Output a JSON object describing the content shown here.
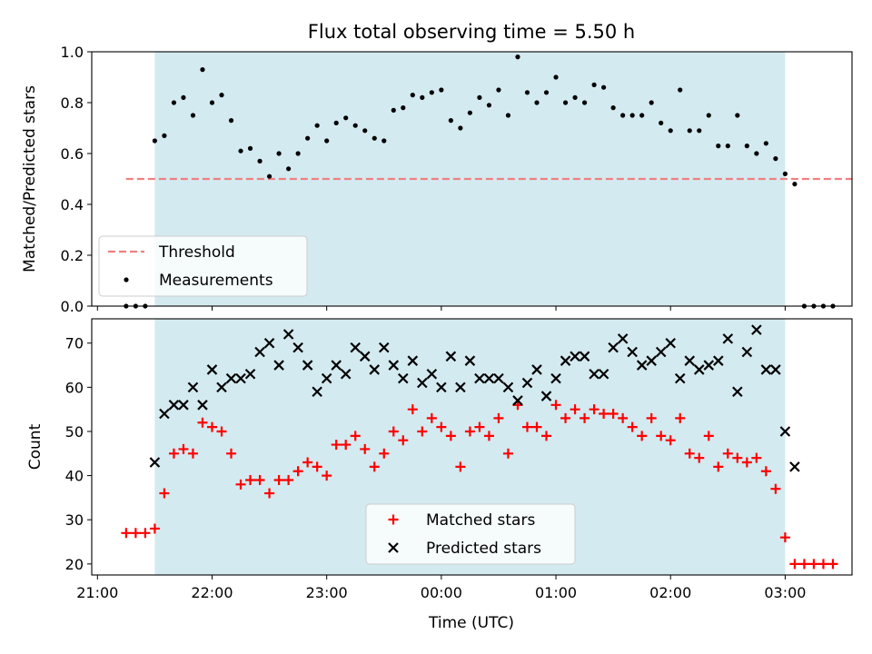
{
  "title": "Flux total observing time = 5.50 h",
  "xlabel": "Time (UTC)",
  "xticks": [
    {
      "t": 0,
      "label": "21:00"
    },
    {
      "t": 60,
      "label": "22:00"
    },
    {
      "t": 120,
      "label": "23:00"
    },
    {
      "t": 180,
      "label": "00:00"
    },
    {
      "t": 240,
      "label": "01:00"
    },
    {
      "t": 300,
      "label": "02:00"
    },
    {
      "t": 360,
      "label": "03:00"
    }
  ],
  "colors": {
    "shade": "#d3eaf0",
    "threshold": "#f08080",
    "measurements": "#000000",
    "matched": "#ff0000",
    "predicted": "#000000"
  },
  "chart_data": [
    {
      "type": "scatter",
      "ylabel": "Matched/Predicted stars",
      "ylim": [
        0,
        1.0
      ],
      "yticks": [
        "0.0",
        "0.2",
        "0.4",
        "0.6",
        "0.8",
        "1.0"
      ],
      "xlim_minutes": [
        -3,
        395
      ],
      "observing_window_minutes": [
        30,
        360
      ],
      "legend_position": "lower-left",
      "threshold": {
        "name": "Threshold",
        "y": 0.5,
        "x_range": [
          15,
          395
        ]
      },
      "series": [
        {
          "name": "Measurements",
          "x": [
            15,
            20,
            25,
            30,
            35,
            40,
            45,
            50,
            55,
            60,
            65,
            70,
            75,
            80,
            85,
            90,
            95,
            100,
            105,
            110,
            115,
            120,
            125,
            130,
            135,
            140,
            145,
            150,
            155,
            160,
            165,
            170,
            175,
            180,
            185,
            190,
            195,
            200,
            205,
            210,
            215,
            220,
            225,
            230,
            235,
            240,
            245,
            250,
            255,
            260,
            265,
            270,
            275,
            280,
            285,
            290,
            295,
            300,
            305,
            310,
            315,
            320,
            325,
            330,
            335,
            340,
            345,
            350,
            355,
            360,
            365,
            370,
            375,
            380,
            385
          ],
          "y": [
            0,
            0,
            0,
            0.65,
            0.67,
            0.8,
            0.82,
            0.75,
            0.93,
            0.8,
            0.83,
            0.73,
            0.61,
            0.62,
            0.57,
            0.51,
            0.6,
            0.54,
            0.6,
            0.66,
            0.71,
            0.65,
            0.72,
            0.74,
            0.71,
            0.69,
            0.66,
            0.65,
            0.77,
            0.78,
            0.83,
            0.82,
            0.84,
            0.85,
            0.73,
            0.7,
            0.76,
            0.82,
            0.79,
            0.85,
            0.75,
            0.98,
            0.84,
            0.8,
            0.84,
            0.9,
            0.8,
            0.82,
            0.8,
            0.87,
            0.86,
            0.78,
            0.75,
            0.75,
            0.75,
            0.8,
            0.72,
            0.69,
            0.85,
            0.69,
            0.69,
            0.75,
            0.63,
            0.63,
            0.75,
            0.63,
            0.6,
            0.64,
            0.58,
            0.52,
            0.48,
            0,
            0,
            0,
            0
          ]
        }
      ]
    },
    {
      "type": "scatter",
      "ylabel": "Count",
      "ylim": [
        17.5,
        75.5
      ],
      "yticks": [
        "20",
        "30",
        "40",
        "50",
        "60",
        "70"
      ],
      "xlim_minutes": [
        -3,
        395
      ],
      "observing_window_minutes": [
        30,
        360
      ],
      "legend_position": "lower-center",
      "series": [
        {
          "name": "Matched stars",
          "marker": "plus",
          "x": [
            15,
            20,
            25,
            30,
            35,
            40,
            45,
            50,
            55,
            60,
            65,
            70,
            75,
            80,
            85,
            90,
            95,
            100,
            105,
            110,
            115,
            120,
            125,
            130,
            135,
            140,
            145,
            150,
            155,
            160,
            165,
            170,
            175,
            180,
            185,
            190,
            195,
            200,
            205,
            210,
            215,
            220,
            225,
            230,
            235,
            240,
            245,
            250,
            255,
            260,
            265,
            270,
            275,
            280,
            285,
            290,
            295,
            300,
            305,
            310,
            315,
            320,
            325,
            330,
            335,
            340,
            345,
            350,
            355,
            360,
            365,
            370,
            375,
            380,
            385
          ],
          "y": [
            27,
            27,
            27,
            28,
            36,
            45,
            46,
            45,
            52,
            51,
            50,
            45,
            38,
            39,
            39,
            36,
            39,
            39,
            41,
            43,
            42,
            40,
            47,
            47,
            49,
            46,
            42,
            45,
            50,
            48,
            55,
            50,
            53,
            51,
            49,
            42,
            50,
            51,
            49,
            53,
            45,
            56,
            51,
            51,
            49,
            56,
            53,
            55,
            53,
            55,
            54,
            54,
            53,
            51,
            49,
            53,
            49,
            48,
            53,
            45,
            44,
            49,
            42,
            45,
            44,
            43,
            44,
            41,
            37,
            26,
            20,
            20,
            20,
            20,
            20
          ]
        },
        {
          "name": "Predicted stars",
          "marker": "x",
          "x": [
            30,
            35,
            40,
            45,
            50,
            55,
            60,
            65,
            70,
            75,
            80,
            85,
            90,
            95,
            100,
            105,
            110,
            115,
            120,
            125,
            130,
            135,
            140,
            145,
            150,
            155,
            160,
            165,
            170,
            175,
            180,
            185,
            190,
            195,
            200,
            205,
            210,
            215,
            220,
            225,
            230,
            235,
            240,
            245,
            250,
            255,
            260,
            265,
            270,
            275,
            280,
            285,
            290,
            295,
            300,
            305,
            310,
            315,
            320,
            325,
            330,
            335,
            340,
            345,
            350,
            355,
            360,
            365
          ],
          "y": [
            43,
            54,
            56,
            56,
            60,
            56,
            64,
            60,
            62,
            62,
            63,
            68,
            70,
            65,
            72,
            69,
            65,
            59,
            62,
            65,
            63,
            69,
            67,
            64,
            69,
            65,
            62,
            66,
            61,
            63,
            60,
            67,
            60,
            66,
            62,
            62,
            62,
            60,
            57,
            61,
            64,
            58,
            62,
            66,
            67,
            67,
            63,
            63,
            69,
            71,
            68,
            65,
            66,
            68,
            70,
            62,
            66,
            64,
            65,
            66,
            71,
            59,
            68,
            73,
            64,
            64,
            50,
            42
          ]
        }
      ]
    }
  ]
}
